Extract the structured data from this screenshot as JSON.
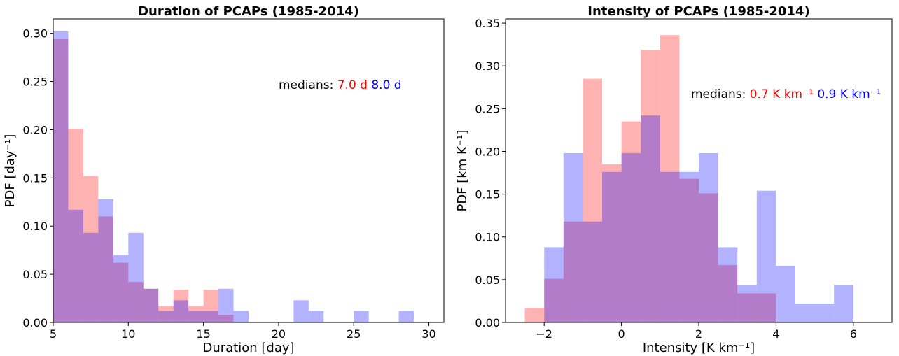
{
  "colors": {
    "red_series": "#ff0000",
    "blue_series": "#0000ff",
    "red_fill": "#fa9a9a",
    "blue_fill": "#9b9bfb",
    "overlap_fill": "#b07dc8"
  },
  "chart_data": [
    {
      "type": "bar",
      "histogram": true,
      "title": "Duration of PCAPs (1985-2014)",
      "xlabel": "Duration [day]",
      "ylabel": "PDF [day⁻¹]",
      "xlim": [
        5,
        31
      ],
      "ylim": [
        0,
        0.315
      ],
      "grid": false,
      "xticks": [
        5,
        10,
        15,
        20,
        25,
        30
      ],
      "yticks": [
        0.0,
        0.05,
        0.1,
        0.15,
        0.2,
        0.25,
        0.3
      ],
      "tick_labels_y": [
        "0.00",
        "0.05",
        "0.10",
        "0.15",
        "0.20",
        "0.25",
        "0.30"
      ],
      "bin_edges": [
        5,
        6,
        7,
        8,
        9,
        10,
        11,
        12,
        13,
        14,
        15,
        16,
        17,
        18,
        19,
        20,
        21,
        22,
        23,
        24,
        25,
        26,
        27,
        28,
        29
      ],
      "series": [
        {
          "values": [
            0.294,
            0.201,
            0.152,
            0.11,
            0.062,
            0.042,
            0.035,
            0.017,
            0.034,
            0.017,
            0.034,
            0.008,
            0,
            0,
            0,
            0,
            0,
            0,
            0,
            0,
            0,
            0,
            0,
            0
          ]
        },
        {
          "values": [
            0.302,
            0.117,
            0.093,
            0.128,
            0.07,
            0.093,
            0.035,
            0.012,
            0.023,
            0.012,
            0.012,
            0.035,
            0.012,
            0,
            0,
            0,
            0.023,
            0.012,
            0,
            0,
            0.012,
            0,
            0,
            0.012
          ]
        }
      ],
      "annotation": {
        "prefix": "medians:",
        "red_text": "7.0 d",
        "blue_text": "8.0 d"
      }
    },
    {
      "type": "bar",
      "histogram": true,
      "title": "Intensity of PCAPs (1985-2014)",
      "xlabel": "Intensity [K km⁻¹]",
      "ylabel": "PDF [km K⁻¹]",
      "xlim": [
        -3,
        7
      ],
      "ylim": [
        0,
        0.355
      ],
      "grid": false,
      "xticks": [
        -2,
        0,
        2,
        4,
        6
      ],
      "tick_labels_x": [
        "−2",
        "0",
        "2",
        "4",
        "6"
      ],
      "yticks": [
        0.0,
        0.05,
        0.1,
        0.15,
        0.2,
        0.25,
        0.3,
        0.35
      ],
      "tick_labels_y": [
        "0.00",
        "0.05",
        "0.10",
        "0.15",
        "0.20",
        "0.25",
        "0.30",
        "0.35"
      ],
      "bin_edges": [
        -2.5,
        -2.0,
        -1.5,
        -1.0,
        -0.5,
        0.0,
        0.5,
        1.0,
        1.5,
        2.0,
        2.5,
        3.0,
        3.5,
        4.0,
        4.5,
        5.0,
        5.5,
        6.0
      ],
      "series": [
        {
          "values": [
            0.017,
            0.051,
            0.118,
            0.285,
            0.185,
            0.235,
            0.319,
            0.336,
            0.168,
            0.151,
            0.067,
            0.034,
            0.034,
            0,
            0,
            0,
            0
          ]
        },
        {
          "values": [
            0,
            0.088,
            0.198,
            0.118,
            0.176,
            0.198,
            0.242,
            0.176,
            0.176,
            0.198,
            0.088,
            0.044,
            0.154,
            0.066,
            0.022,
            0.022,
            0.044
          ]
        }
      ],
      "annotation": {
        "prefix": "medians:",
        "red_text": "0.7 K km⁻¹",
        "blue_text": "0.9 K km⁻¹"
      }
    }
  ]
}
